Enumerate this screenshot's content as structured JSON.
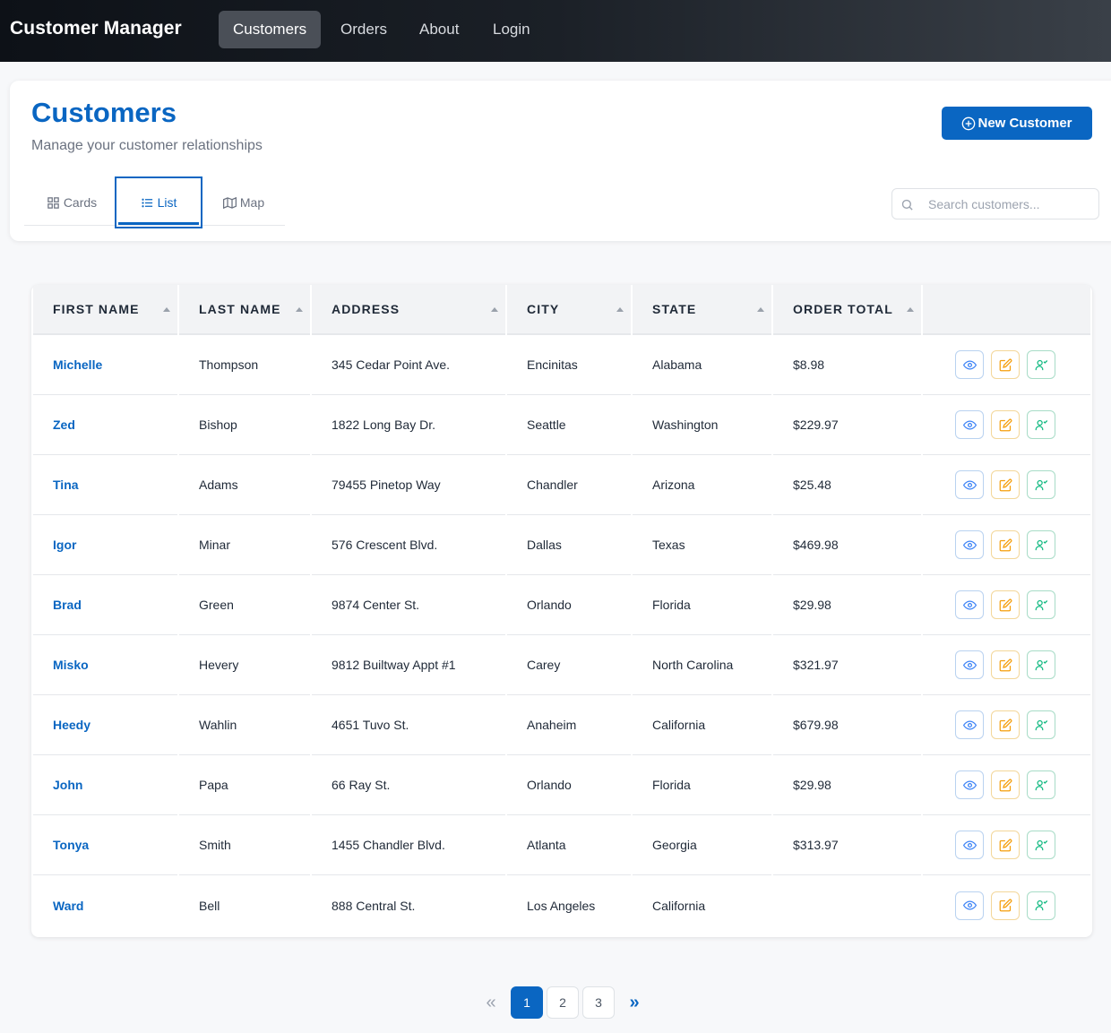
{
  "navbar": {
    "brand": "Customer Manager",
    "links": [
      "Customers",
      "Orders",
      "About",
      "Login"
    ],
    "active": "Customers"
  },
  "header": {
    "title": "Customers",
    "subtitle": "Manage your customer relationships",
    "new_button": "New Customer",
    "tabs": [
      "Cards",
      "List",
      "Map"
    ],
    "active_tab": "List",
    "search_placeholder": "Search customers..."
  },
  "table": {
    "columns": [
      "FIRST NAME",
      "LAST NAME",
      "ADDRESS",
      "CITY",
      "STATE",
      "ORDER TOTAL"
    ],
    "rows": [
      {
        "first": "Michelle",
        "last": "Thompson",
        "address": "345 Cedar Point Ave.",
        "city": "Encinitas",
        "state": "Alabama",
        "total": "$8.98"
      },
      {
        "first": "Zed",
        "last": "Bishop",
        "address": "1822 Long Bay Dr.",
        "city": "Seattle",
        "state": "Washington",
        "total": "$229.97"
      },
      {
        "first": "Tina",
        "last": "Adams",
        "address": "79455 Pinetop Way",
        "city": "Chandler",
        "state": "Arizona",
        "total": "$25.48"
      },
      {
        "first": "Igor",
        "last": "Minar",
        "address": "576 Crescent Blvd.",
        "city": "Dallas",
        "state": "Texas",
        "total": "$469.98"
      },
      {
        "first": "Brad",
        "last": "Green",
        "address": "9874 Center St.",
        "city": "Orlando",
        "state": "Florida",
        "total": "$29.98"
      },
      {
        "first": "Misko",
        "last": "Hevery",
        "address": "9812 Builtway Appt #1",
        "city": "Carey",
        "state": "North Carolina",
        "total": "$321.97"
      },
      {
        "first": "Heedy",
        "last": "Wahlin",
        "address": "4651 Tuvo St.",
        "city": "Anaheim",
        "state": "California",
        "total": "$679.98"
      },
      {
        "first": "John",
        "last": "Papa",
        "address": "66 Ray St.",
        "city": "Orlando",
        "state": "Florida",
        "total": "$29.98"
      },
      {
        "first": "Tonya",
        "last": "Smith",
        "address": "1455 Chandler Blvd.",
        "city": "Atlanta",
        "state": "Georgia",
        "total": "$313.97"
      },
      {
        "first": "Ward",
        "last": "Bell",
        "address": "888 Central St.",
        "city": "Los Angeles",
        "state": "California",
        "total": ""
      }
    ]
  },
  "pagination": {
    "prev": "«",
    "next": "»",
    "pages": [
      "1",
      "2",
      "3"
    ],
    "current": "1"
  },
  "colors": {
    "accent": "#0a66c2",
    "view": "#3b82f6",
    "edit": "#f59e0b",
    "assign": "#10b981"
  },
  "icons": {
    "new_button": "plus-circle-icon",
    "tabs": [
      "grid-icon",
      "list-icon",
      "map-icon"
    ],
    "search": "search-icon",
    "row_actions": [
      "eye-icon",
      "edit-icon",
      "user-check-icon"
    ]
  }
}
